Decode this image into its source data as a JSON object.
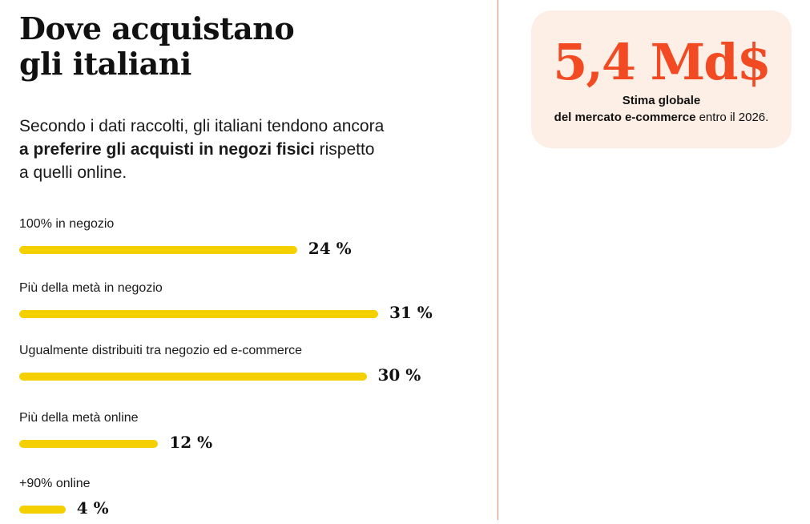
{
  "title": {
    "line1": "Dove acquistano",
    "line2": "gli italiani"
  },
  "intro": {
    "part1": "Secondo i dati raccolti, gli italiani tendono ancora",
    "bold": "a preferire gli acquisti in negozi fisici",
    "part2": " rispetto",
    "part3": "a quelli online."
  },
  "stat": {
    "value": "5,4 Md$",
    "caption_line1": "Stima globale",
    "caption_bold": "del mercato e-commerce",
    "caption_rest": " entro il 2026."
  },
  "colors": {
    "bar": "#f5d000",
    "accent": "#f24a22",
    "card_bg": "#fdeee6",
    "divider": "#f08a6e"
  },
  "chart_data": {
    "type": "bar",
    "orientation": "horizontal",
    "categories": [
      "100% in negozio",
      "Più della metà in negozio",
      "Ugualmente distribuiti tra negozio ed e-commerce",
      "Più della metà online",
      "+90% online"
    ],
    "values": [
      24,
      31,
      30,
      12,
      4
    ],
    "value_labels": [
      "24 %",
      "31 %",
      "30 %",
      "12 %",
      "4 %"
    ],
    "unit": "%",
    "title": "",
    "grid": false,
    "legend": "none"
  }
}
